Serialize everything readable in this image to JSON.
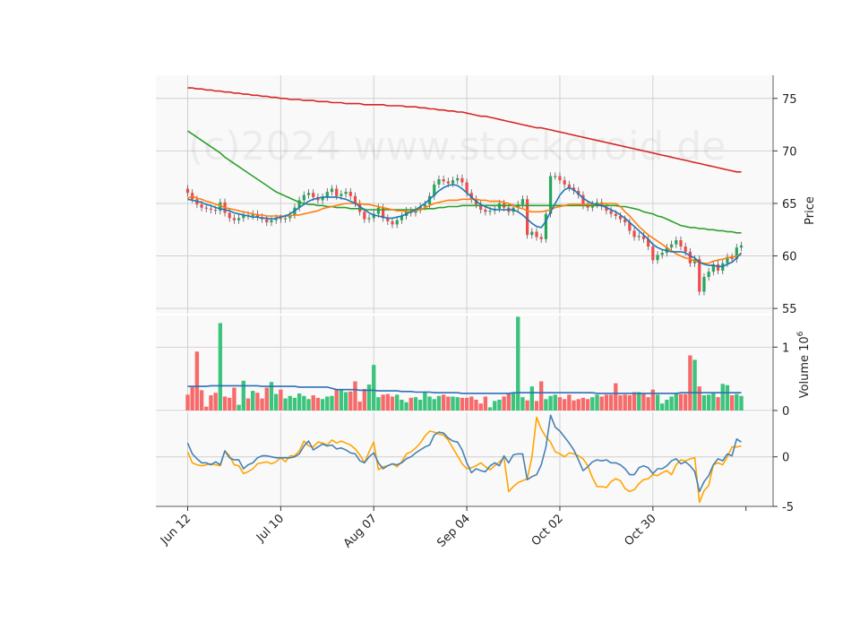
{
  "watermark": "(c)2024 www.stockdroid.de",
  "chart_data": {
    "type": "candlestick",
    "x_tick_labels": [
      "Jun 12",
      "Jul 10",
      "Aug 07",
      "Sep 04",
      "Oct 02",
      "Oct 30"
    ],
    "x_tick_indices": [
      0,
      20,
      40,
      60,
      80,
      100
    ],
    "price_panel": {
      "ylabel": "Price",
      "yticks": [
        55,
        60,
        65,
        70,
        75
      ],
      "ylim": [
        54.5,
        77.2
      ],
      "closes": [
        66.0,
        65.4,
        64.9,
        64.6,
        64.5,
        64.4,
        64.3,
        65.1,
        64.1,
        63.6,
        63.4,
        63.6,
        63.9,
        63.8,
        64.0,
        63.7,
        63.5,
        63.2,
        63.4,
        63.6,
        63.5,
        63.6,
        63.9,
        64.6,
        65.3,
        65.8,
        66.0,
        65.6,
        65.3,
        65.6,
        66.1,
        66.4,
        65.7,
        65.9,
        66.1,
        65.7,
        65.0,
        64.2,
        63.5,
        63.6,
        64.0,
        64.6,
        63.6,
        63.3,
        63.0,
        63.4,
        63.8,
        64.3,
        64.1,
        64.4,
        64.7,
        64.9,
        65.7,
        66.8,
        67.3,
        67.1,
        66.9,
        67.2,
        67.4,
        67.0,
        66.0,
        65.4,
        64.9,
        64.4,
        64.2,
        64.3,
        64.5,
        65.0,
        64.6,
        64.2,
        64.6,
        64.9,
        65.4,
        62.0,
        62.3,
        61.8,
        61.6,
        64.0,
        67.6,
        67.6,
        67.2,
        66.8,
        66.5,
        66.2,
        65.8,
        64.8,
        64.6,
        64.9,
        65.1,
        64.7,
        64.3,
        64.0,
        63.8,
        63.5,
        63.2,
        62.4,
        61.8,
        61.9,
        61.6,
        60.9,
        59.6,
        60.1,
        60.3,
        60.8,
        61.1,
        61.5,
        60.9,
        60.4,
        59.3,
        59.7,
        56.6,
        58.0,
        58.5,
        59.2,
        58.6,
        59.3,
        59.9,
        59.7,
        60.8,
        61.0
      ],
      "ma_short": [
        65.4,
        65.3,
        65.2,
        65.1,
        64.9,
        64.8,
        64.6,
        64.5,
        64.4,
        64.3,
        64.1,
        64.0,
        63.9,
        63.8,
        63.7,
        63.7,
        63.6,
        63.6,
        63.5,
        63.6,
        63.7,
        63.8,
        64.0,
        64.3,
        64.6,
        64.9,
        65.2,
        65.4,
        65.5,
        65.6,
        65.6,
        65.6,
        65.6,
        65.5,
        65.4,
        65.2,
        65.0,
        64.7,
        64.4,
        64.1,
        63.9,
        63.8,
        63.7,
        63.6,
        63.6,
        63.7,
        63.8,
        64.0,
        64.2,
        64.4,
        64.7,
        65.0,
        65.4,
        65.8,
        66.2,
        66.5,
        66.7,
        66.8,
        66.7,
        66.4,
        66.0,
        65.6,
        65.2,
        64.9,
        64.7,
        64.5,
        64.4,
        64.4,
        64.4,
        64.4,
        64.4,
        64.2,
        63.9,
        63.5,
        63.1,
        62.8,
        62.7,
        63.3,
        64.2,
        65.0,
        65.8,
        66.3,
        66.5,
        66.3,
        65.9,
        65.5,
        65.2,
        65.0,
        64.9,
        64.8,
        64.6,
        64.4,
        64.2,
        63.9,
        63.6,
        63.2,
        62.8,
        62.4,
        62.0,
        61.6,
        61.1,
        60.8,
        60.6,
        60.5,
        60.4,
        60.4,
        60.4,
        60.3,
        60.0,
        59.8,
        59.4,
        59.2,
        59.1,
        59.1,
        59.0,
        59.0,
        59.2,
        59.4,
        59.8,
        60.3
      ],
      "ma_mid": [
        65.5,
        65.7,
        65.5,
        65.4,
        65.2,
        65.1,
        64.9,
        64.8,
        64.6,
        64.5,
        64.4,
        64.3,
        64.2,
        64.1,
        64.0,
        63.9,
        63.9,
        63.8,
        63.8,
        63.8,
        63.8,
        63.8,
        63.8,
        63.9,
        63.9,
        64.0,
        64.1,
        64.2,
        64.3,
        64.5,
        64.6,
        64.7,
        64.8,
        64.9,
        65.0,
        65.0,
        65.0,
        65.0,
        64.9,
        64.9,
        64.8,
        64.7,
        64.6,
        64.5,
        64.4,
        64.3,
        64.3,
        64.2,
        64.2,
        64.3,
        64.4,
        64.6,
        64.8,
        65.0,
        65.1,
        65.2,
        65.3,
        65.3,
        65.3,
        65.4,
        65.4,
        65.4,
        65.4,
        65.3,
        65.3,
        65.2,
        65.2,
        65.2,
        65.1,
        65.0,
        64.8,
        64.6,
        64.5,
        64.3,
        64.2,
        64.2,
        64.2,
        64.3,
        64.4,
        64.6,
        64.7,
        64.8,
        64.9,
        64.9,
        64.9,
        64.9,
        64.9,
        64.9,
        64.9,
        65.0,
        65.0,
        65.0,
        65.0,
        64.7,
        64.2,
        63.8,
        63.3,
        62.8,
        62.4,
        62.0,
        61.7,
        61.4,
        61.1,
        60.8,
        60.5,
        60.2,
        60.0,
        59.8,
        59.7,
        59.5,
        59.4,
        59.3,
        59.3,
        59.5,
        59.6,
        59.7,
        59.8,
        59.9,
        60.0,
        60.1
      ],
      "ma_long": [
        71.9,
        71.6,
        71.3,
        71.0,
        70.7,
        70.4,
        70.1,
        69.8,
        69.4,
        69.1,
        68.8,
        68.5,
        68.2,
        67.9,
        67.6,
        67.3,
        67.0,
        66.7,
        66.4,
        66.1,
        65.9,
        65.7,
        65.5,
        65.3,
        65.1,
        65.0,
        64.9,
        64.9,
        64.8,
        64.8,
        64.7,
        64.7,
        64.6,
        64.6,
        64.6,
        64.5,
        64.5,
        64.5,
        64.4,
        64.4,
        64.4,
        64.4,
        64.4,
        64.4,
        64.4,
        64.4,
        64.4,
        64.4,
        64.4,
        64.4,
        64.4,
        64.5,
        64.5,
        64.5,
        64.6,
        64.6,
        64.7,
        64.7,
        64.7,
        64.8,
        64.8,
        64.8,
        64.8,
        64.8,
        64.8,
        64.8,
        64.8,
        64.8,
        64.8,
        64.8,
        64.8,
        64.8,
        64.8,
        64.8,
        64.8,
        64.8,
        64.8,
        64.8,
        64.8,
        64.8,
        64.8,
        64.8,
        64.8,
        64.8,
        64.8,
        64.8,
        64.8,
        64.8,
        64.8,
        64.8,
        64.8,
        64.8,
        64.8,
        64.7,
        64.7,
        64.6,
        64.5,
        64.4,
        64.2,
        64.1,
        64.0,
        63.8,
        63.7,
        63.5,
        63.3,
        63.1,
        62.9,
        62.8,
        62.7,
        62.7,
        62.6,
        62.6,
        62.5,
        62.5,
        62.4,
        62.4,
        62.3,
        62.3,
        62.2,
        62.2
      ],
      "ma_200": [
        76.0,
        76.0,
        75.9,
        75.9,
        75.8,
        75.8,
        75.7,
        75.7,
        75.6,
        75.6,
        75.5,
        75.5,
        75.4,
        75.4,
        75.3,
        75.3,
        75.2,
        75.2,
        75.1,
        75.1,
        75.0,
        75.0,
        74.9,
        74.9,
        74.9,
        74.8,
        74.8,
        74.8,
        74.7,
        74.7,
        74.7,
        74.6,
        74.6,
        74.6,
        74.5,
        74.5,
        74.5,
        74.5,
        74.4,
        74.4,
        74.4,
        74.4,
        74.4,
        74.3,
        74.3,
        74.3,
        74.3,
        74.2,
        74.2,
        74.2,
        74.1,
        74.1,
        74.0,
        74.0,
        73.9,
        73.9,
        73.8,
        73.8,
        73.7,
        73.7,
        73.6,
        73.5,
        73.4,
        73.3,
        73.3,
        73.2,
        73.1,
        73.0,
        72.9,
        72.8,
        72.7,
        72.6,
        72.5,
        72.4,
        72.3,
        72.2,
        72.2,
        72.1,
        72.0,
        71.9,
        71.8,
        71.7,
        71.6,
        71.5,
        71.4,
        71.3,
        71.2,
        71.1,
        71.0,
        70.9,
        70.8,
        70.7,
        70.6,
        70.5,
        70.4,
        70.3,
        70.2,
        70.1,
        70.0,
        69.9,
        69.8,
        69.7,
        69.6,
        69.5,
        69.4,
        69.3,
        69.2,
        69.1,
        69.0,
        68.9,
        68.8,
        68.7,
        68.6,
        68.5,
        68.4,
        68.3,
        68.2,
        68.1,
        68.0,
        68.0
      ]
    },
    "volume_panel": {
      "ylabel": "Volume  10^6",
      "ylabel_main": "Volume",
      "ylabel_exp_base": "10",
      "ylabel_exp": "6",
      "yticks": [
        0,
        1
      ],
      "ylim": [
        0,
        1.5
      ],
      "volumes": [
        0.25,
        0.37,
        0.93,
        0.32,
        0.06,
        0.24,
        0.28,
        1.38,
        0.22,
        0.2,
        0.36,
        0.09,
        0.47,
        0.19,
        0.31,
        0.28,
        0.19,
        0.36,
        0.45,
        0.26,
        0.33,
        0.19,
        0.23,
        0.2,
        0.27,
        0.23,
        0.18,
        0.24,
        0.2,
        0.18,
        0.22,
        0.23,
        0.33,
        0.32,
        0.29,
        0.3,
        0.46,
        0.14,
        0.34,
        0.41,
        0.72,
        0.21,
        0.25,
        0.26,
        0.22,
        0.25,
        0.17,
        0.13,
        0.2,
        0.21,
        0.17,
        0.3,
        0.22,
        0.18,
        0.23,
        0.25,
        0.22,
        0.22,
        0.21,
        0.2,
        0.2,
        0.22,
        0.17,
        0.11,
        0.22,
        0.05,
        0.15,
        0.17,
        0.22,
        0.27,
        0.28,
        1.48,
        0.21,
        0.16,
        0.38,
        0.15,
        0.46,
        0.18,
        0.23,
        0.25,
        0.21,
        0.18,
        0.25,
        0.16,
        0.18,
        0.2,
        0.18,
        0.21,
        0.25,
        0.22,
        0.25,
        0.25,
        0.43,
        0.24,
        0.25,
        0.24,
        0.29,
        0.29,
        0.27,
        0.21,
        0.33,
        0.25,
        0.11,
        0.17,
        0.22,
        0.28,
        0.26,
        0.26,
        0.87,
        0.8,
        0.38,
        0.24,
        0.25,
        0.29,
        0.21,
        0.42,
        0.4,
        0.24,
        0.26,
        0.23
      ],
      "vol_ma": [
        0.38,
        0.38,
        0.38,
        0.38,
        0.38,
        0.39,
        0.39,
        0.39,
        0.39,
        0.39,
        0.39,
        0.39,
        0.39,
        0.39,
        0.39,
        0.39,
        0.38,
        0.38,
        0.38,
        0.38,
        0.38,
        0.38,
        0.38,
        0.38,
        0.37,
        0.37,
        0.37,
        0.37,
        0.37,
        0.37,
        0.37,
        0.35,
        0.33,
        0.33,
        0.33,
        0.33,
        0.33,
        0.32,
        0.32,
        0.32,
        0.32,
        0.31,
        0.31,
        0.31,
        0.31,
        0.31,
        0.3,
        0.3,
        0.3,
        0.29,
        0.29,
        0.29,
        0.29,
        0.28,
        0.28,
        0.28,
        0.28,
        0.28,
        0.28,
        0.27,
        0.27,
        0.27,
        0.27,
        0.27,
        0.27,
        0.27,
        0.27,
        0.27,
        0.27,
        0.27,
        0.28,
        0.28,
        0.28,
        0.28,
        0.28,
        0.28,
        0.28,
        0.28,
        0.28,
        0.28,
        0.28,
        0.28,
        0.28,
        0.28,
        0.28,
        0.28,
        0.28,
        0.28,
        0.27,
        0.27,
        0.27,
        0.27,
        0.27,
        0.27,
        0.27,
        0.27,
        0.27,
        0.27,
        0.27,
        0.27,
        0.27,
        0.27,
        0.27,
        0.27,
        0.27,
        0.27,
        0.28,
        0.28,
        0.28,
        0.28,
        0.28,
        0.28,
        0.28,
        0.28,
        0.28,
        0.28,
        0.28,
        0.28,
        0.28,
        0.28
      ]
    },
    "oscillator_panel": {
      "yticks": [
        -5,
        0
      ],
      "ylim": [
        -5,
        4.5
      ],
      "line_a": [
        1.4,
        0.3,
        -0.2,
        -0.6,
        -0.6,
        -0.8,
        -0.5,
        -0.8,
        0.6,
        -0.1,
        -0.3,
        -0.3,
        -1.2,
        -0.8,
        -0.6,
        -0.1,
        0.1,
        0.1,
        0.0,
        -0.1,
        -0.1,
        -0.1,
        -0.1,
        0.0,
        0.3,
        1.1,
        1.6,
        0.7,
        1.0,
        1.3,
        1.1,
        1.2,
        0.8,
        0.9,
        0.7,
        0.4,
        0.3,
        -0.4,
        -0.6,
        0.0,
        0.4,
        -0.6,
        -1.2,
        -0.9,
        -0.7,
        -0.8,
        -0.6,
        -0.2,
        0.0,
        0.4,
        0.7,
        1.0,
        1.2,
        2.2,
        2.5,
        2.4,
        1.9,
        1.6,
        1.5,
        0.7,
        -0.6,
        -1.6,
        -1.2,
        -1.4,
        -1.5,
        -0.9,
        -0.6,
        -0.9,
        0.1,
        -0.6,
        0.2,
        0.3,
        0.3,
        -2.3,
        -2.0,
        -1.8,
        -0.8,
        1.0,
        4.2,
        3.0,
        2.6,
        2.0,
        1.4,
        0.7,
        -0.3,
        -1.4,
        -1.0,
        -0.5,
        -0.3,
        -0.4,
        -0.3,
        -0.6,
        -0.6,
        -0.8,
        -1.2,
        -1.8,
        -1.8,
        -1.1,
        -0.9,
        -1.1,
        -1.7,
        -1.2,
        -1.2,
        -0.9,
        -0.4,
        -0.2,
        -0.7,
        -0.5,
        -0.9,
        -1.5,
        -3.5,
        -2.5,
        -1.9,
        -0.8,
        -0.2,
        -0.4,
        0.3,
        0.1,
        1.8,
        1.5
      ],
      "line_b": [
        0.5,
        -0.6,
        -0.8,
        -0.9,
        -0.8,
        -0.7,
        -0.8,
        -0.9,
        0.6,
        0.1,
        -0.8,
        -0.9,
        -1.7,
        -1.5,
        -1.2,
        -0.7,
        -0.6,
        -0.5,
        -0.7,
        -0.5,
        -0.1,
        -0.5,
        0.1,
        0.1,
        0.6,
        1.6,
        1.1,
        1.0,
        1.5,
        1.4,
        1.2,
        1.7,
        1.4,
        1.6,
        1.4,
        1.2,
        0.8,
        0.2,
        -0.6,
        0.5,
        1.5,
        -1.3,
        -1.0,
        -0.9,
        -0.7,
        -1.0,
        -0.5,
        0.3,
        0.5,
        0.9,
        1.4,
        2.1,
        2.6,
        2.5,
        2.3,
        2.2,
        1.7,
        0.9,
        0.1,
        -0.7,
        -1.2,
        -1.1,
        -0.9,
        -0.6,
        -1.0,
        -1.3,
        -0.9,
        -0.5,
        -0.1,
        -3.5,
        -3.0,
        -2.6,
        -2.4,
        -2.2,
        0.0,
        4.0,
        2.8,
        2.0,
        1.5,
        0.5,
        0.3,
        0.0,
        0.4,
        0.3,
        0.1,
        -0.2,
        -0.9,
        -2.1,
        -3.0,
        -3.0,
        -3.1,
        -2.5,
        -2.2,
        -2.4,
        -3.2,
        -3.5,
        -3.3,
        -2.7,
        -2.3,
        -2.2,
        -1.8,
        -1.9,
        -1.6,
        -1.4,
        -1.8,
        -0.8,
        -0.3,
        -0.4,
        -0.2,
        -0.1,
        -4.6,
        -3.4,
        -2.9,
        -0.8,
        -0.6,
        -0.8,
        0.0,
        1.0,
        1.0,
        1.1
      ]
    }
  }
}
